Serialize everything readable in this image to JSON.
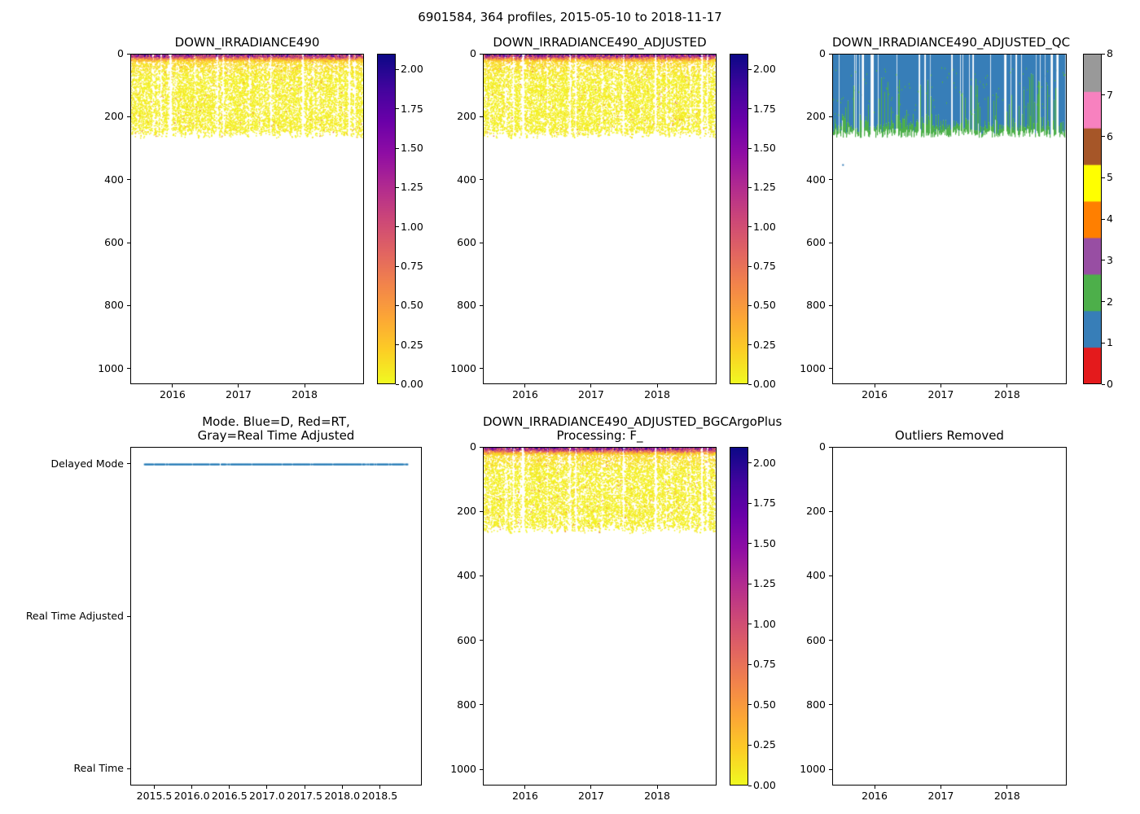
{
  "figure": {
    "suptitle": "6901584, 364 profiles, 2015-05-10 to 2018-11-17",
    "background": "#ffffff",
    "axes_color": "#000000"
  },
  "palettes": {
    "plasma_stops": [
      [
        0,
        "#0d0887"
      ],
      [
        0.1,
        "#41049d"
      ],
      [
        0.2,
        "#6a00a8"
      ],
      [
        0.3,
        "#8f0da4"
      ],
      [
        0.4,
        "#b12a90"
      ],
      [
        0.5,
        "#cc4778"
      ],
      [
        0.6,
        "#e16462"
      ],
      [
        0.7,
        "#f2844b"
      ],
      [
        0.8,
        "#fca636"
      ],
      [
        0.9,
        "#fcce25"
      ],
      [
        1,
        "#f0f921"
      ]
    ],
    "qc_colors": [
      "#e41a1c",
      "#377eb8",
      "#4daf4a",
      "#984ea3",
      "#ff7f00",
      "#ffff00",
      "#a65628",
      "#f781bf",
      "#999999"
    ],
    "mode_blue": "#1f77b4"
  },
  "chart_data": [
    {
      "id": "down_irradiance490",
      "type": "scatter",
      "title": "DOWN_IRRADIANCE490",
      "xlim": [
        2015.36,
        2018.9
      ],
      "ylim": [
        0,
        1050
      ],
      "y_inverted": true,
      "xlabel": "",
      "ylabel": "",
      "x_ticks": {
        "values": [
          2016,
          2017,
          2018
        ],
        "labels": [
          "2016",
          "2017",
          "2018"
        ]
      },
      "y_ticks": {
        "values": [
          0,
          200,
          400,
          600,
          800,
          1000
        ],
        "labels": [
          "0",
          "200",
          "400",
          "600",
          "800",
          "1000"
        ]
      },
      "colorbar": {
        "lim": [
          0,
          2.1
        ],
        "colormap": "plasma_r",
        "tick_values": [
          0,
          0.25,
          0.5,
          0.75,
          1,
          1.25,
          1.5,
          1.75,
          2
        ],
        "tick_labels": [
          "0.00",
          "0.25",
          "0.50",
          "0.75",
          "1.00",
          "1.25",
          "1.50",
          "1.75",
          "2.00"
        ]
      },
      "data_summary": {
        "n_profiles": 364,
        "time_start": 2015.36,
        "time_end": 2018.88,
        "depth_range_m": [
          0,
          265
        ],
        "surface_values_max": 2.1,
        "values_below_30m": "mostly < 0.3 (yellow)",
        "grid": false,
        "legend": false
      }
    },
    {
      "id": "down_irradiance490_adjusted",
      "type": "scatter",
      "title": "DOWN_IRRADIANCE490_ADJUSTED",
      "xlim": [
        2015.36,
        2018.9
      ],
      "ylim": [
        0,
        1050
      ],
      "y_inverted": true,
      "xlabel": "",
      "ylabel": "",
      "x_ticks": {
        "values": [
          2016,
          2017,
          2018
        ],
        "labels": [
          "2016",
          "2017",
          "2018"
        ]
      },
      "y_ticks": {
        "values": [
          0,
          200,
          400,
          600,
          800,
          1000
        ],
        "labels": [
          "0",
          "200",
          "400",
          "600",
          "800",
          "1000"
        ]
      },
      "colorbar": {
        "lim": [
          0,
          2.1
        ],
        "colormap": "plasma_r",
        "tick_values": [
          0,
          0.25,
          0.5,
          0.75,
          1,
          1.25,
          1.5,
          1.75,
          2
        ],
        "tick_labels": [
          "0.00",
          "0.25",
          "0.50",
          "0.75",
          "1.00",
          "1.25",
          "1.50",
          "1.75",
          "2.00"
        ]
      },
      "data_summary": {
        "n_profiles": 364,
        "time_start": 2015.36,
        "time_end": 2018.88,
        "depth_range_m": [
          0,
          265
        ],
        "surface_values_max": 2.1,
        "values_below_30m": "mostly < 0.3 (yellow)",
        "grid": false,
        "legend": false
      }
    },
    {
      "id": "down_irradiance490_adjusted_qc",
      "type": "scatter",
      "title": "DOWN_IRRADIANCE490_ADJUSTED_QC",
      "xlim": [
        2015.36,
        2018.9
      ],
      "ylim": [
        0,
        1050
      ],
      "y_inverted": true,
      "xlabel": "",
      "ylabel": "",
      "x_ticks": {
        "values": [
          2016,
          2017,
          2018
        ],
        "labels": [
          "2016",
          "2017",
          "2018"
        ]
      },
      "y_ticks": {
        "values": [
          0,
          200,
          400,
          600,
          800,
          1000
        ],
        "labels": [
          "0",
          "200",
          "400",
          "600",
          "800",
          "1000"
        ]
      },
      "colorbar": {
        "lim": [
          0,
          8
        ],
        "colormap": "qc_flags",
        "tick_values": [
          0,
          1,
          2,
          3,
          4,
          5,
          6,
          7,
          8
        ],
        "tick_labels": [
          "0",
          "1",
          "2",
          "3",
          "4",
          "5",
          "6",
          "7",
          "8"
        ]
      },
      "data_summary": {
        "n_profiles": 364,
        "qc_values_present": [
          1,
          2
        ],
        "dominant_qc": "1 (blue) over 0-200 m",
        "bottom_band_qc": "2 (green) near 180-260 m",
        "grid": false,
        "legend": false
      }
    },
    {
      "id": "mode",
      "type": "line",
      "title": "Mode. Blue=D, Red=RT,\nGray=Real Time Adjusted",
      "xlim": [
        2015.18,
        2019.06
      ],
      "ylim": [
        -0.11,
        2.11
      ],
      "x_ticks": {
        "values": [
          2015.5,
          2016,
          2016.5,
          2017,
          2017.5,
          2018,
          2018.5
        ],
        "labels": [
          "2015.5",
          "2016.0",
          "2016.5",
          "2017.0",
          "2017.5",
          "2018.0",
          "2018.5"
        ]
      },
      "categories": [
        {
          "label": "Delayed Mode",
          "value": 2
        },
        {
          "label": "Real Time Adjusted",
          "value": 1
        },
        {
          "label": "Real Time",
          "value": 0
        }
      ],
      "series": [
        {
          "name": "mode",
          "category": "Delayed Mode",
          "color": "#1f77b4",
          "time_start": 2015.36,
          "time_end": 2018.88,
          "style": "dense dotted horizontal line at Delayed Mode"
        }
      ]
    },
    {
      "id": "down_irradiance490_adjusted_bgcargoplus",
      "type": "scatter",
      "title": "DOWN_IRRADIANCE490_ADJUSTED_BGCArgoPlus\nProcessing: F_",
      "xlim": [
        2015.36,
        2018.9
      ],
      "ylim": [
        0,
        1050
      ],
      "y_inverted": true,
      "xlabel": "",
      "ylabel": "",
      "x_ticks": {
        "values": [
          2016,
          2017,
          2018
        ],
        "labels": [
          "2016",
          "2017",
          "2018"
        ]
      },
      "y_ticks": {
        "values": [
          0,
          200,
          400,
          600,
          800,
          1000
        ],
        "labels": [
          "0",
          "200",
          "400",
          "600",
          "800",
          "1000"
        ]
      },
      "colorbar": {
        "lim": [
          0,
          2.1
        ],
        "colormap": "plasma_r",
        "tick_values": [
          0,
          0.25,
          0.5,
          0.75,
          1,
          1.25,
          1.5,
          1.75,
          2
        ],
        "tick_labels": [
          "0.00",
          "0.25",
          "0.50",
          "0.75",
          "1.00",
          "1.25",
          "1.50",
          "1.75",
          "2.00"
        ]
      },
      "data_summary": {
        "n_profiles": 364,
        "time_start": 2015.36,
        "time_end": 2018.88,
        "depth_range_m": [
          0,
          265
        ],
        "surface_values_max": 2.1,
        "values_below_30m": "mostly < 0.3 (yellow)",
        "grid": false,
        "legend": false
      }
    },
    {
      "id": "outliers_removed",
      "type": "scatter",
      "title": "Outliers Removed",
      "xlim": [
        2015.36,
        2018.9
      ],
      "ylim": [
        0,
        1050
      ],
      "y_inverted": true,
      "x_ticks": {
        "values": [
          2016,
          2017,
          2018
        ],
        "labels": [
          "2016",
          "2017",
          "2018"
        ]
      },
      "y_ticks": {
        "values": [
          0,
          200,
          400,
          600,
          800,
          1000
        ],
        "labels": [
          "0",
          "200",
          "400",
          "600",
          "800",
          "1000"
        ]
      },
      "data_summary": {
        "points": 0,
        "note": "empty axes"
      }
    }
  ]
}
